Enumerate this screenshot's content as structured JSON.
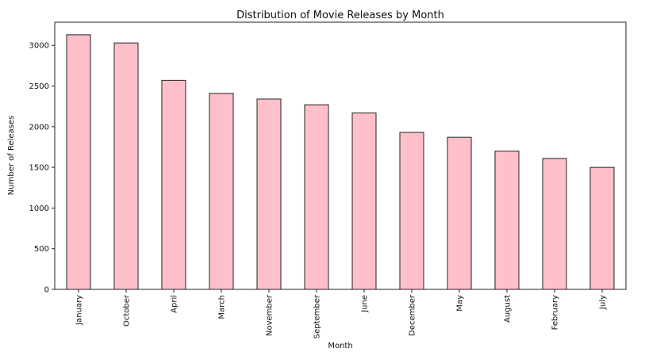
{
  "chart_data": {
    "type": "bar",
    "title": "Distribution of Movie Releases by Month",
    "xlabel": "Month",
    "ylabel": "Number of Releases",
    "categories": [
      "January",
      "October",
      "April",
      "March",
      "November",
      "September",
      "June",
      "December",
      "May",
      "August",
      "February",
      "July"
    ],
    "values": [
      3130,
      3030,
      2570,
      2410,
      2340,
      2270,
      2170,
      1930,
      1870,
      1700,
      1610,
      1500
    ],
    "ylim": [
      0,
      3285
    ],
    "yticks": [
      0,
      500,
      1000,
      1500,
      2000,
      2500,
      3000
    ],
    "grid": false,
    "colors": {
      "bar_fill": "#ffc0cb",
      "bar_edge": "#222222"
    }
  }
}
